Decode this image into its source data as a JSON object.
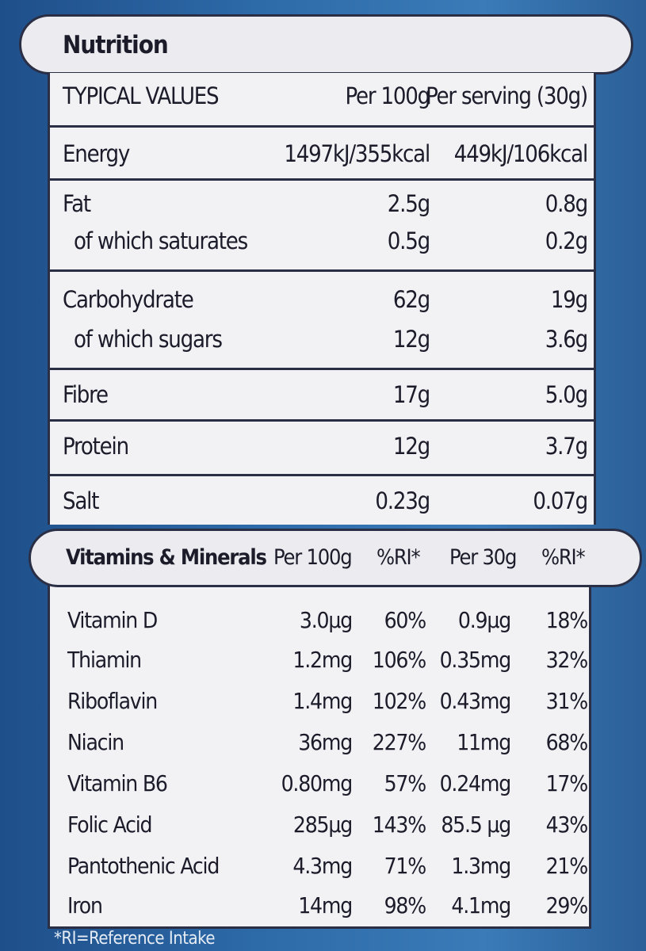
{
  "nutrition": {
    "title": "Nutrition",
    "header": {
      "label": "TYPICAL VALUES",
      "per100": "Per 100g",
      "perServing": "Per serving (30g)"
    },
    "energy": {
      "label": "Energy",
      "per100": "1497kJ/355kcal",
      "perServing": "449kJ/106kcal"
    },
    "fat": {
      "label": "Fat",
      "per100": "2.5g",
      "perServing": "0.8g"
    },
    "saturates": {
      "label": "of which saturates",
      "per100": "0.5g",
      "perServing": "0.2g"
    },
    "carbohydrate": {
      "label": "Carbohydrate",
      "per100": "62g",
      "perServing": "19g"
    },
    "sugars": {
      "label": "of which sugars",
      "per100": "12g",
      "perServing": "3.6g"
    },
    "fibre": {
      "label": "Fibre",
      "per100": "17g",
      "perServing": "5.0g"
    },
    "protein": {
      "label": "Protein",
      "per100": "12g",
      "perServing": "3.7g"
    },
    "salt": {
      "label": "Salt",
      "per100": "0.23g",
      "perServing": "0.07g"
    }
  },
  "vitamins": {
    "header": {
      "title": "Vitamins & Minerals",
      "per100": "Per 100g",
      "ri1": "%RI*",
      "per30": "Per 30g",
      "ri2": "%RI*"
    },
    "rows": [
      {
        "name": "Vitamin D",
        "per100": "3.0µg",
        "ri1": "60%",
        "per30": "0.9µg",
        "ri2": "18%"
      },
      {
        "name": "Thiamin",
        "per100": "1.2mg",
        "ri1": "106%",
        "per30": "0.35mg",
        "ri2": "32%"
      },
      {
        "name": "Riboflavin",
        "per100": "1.4mg",
        "ri1": "102%",
        "per30": "0.43mg",
        "ri2": "31%"
      },
      {
        "name": "Niacin",
        "per100": "36mg",
        "ri1": "227%",
        "per30": "11mg",
        "ri2": "68%"
      },
      {
        "name": "Vitamin B6",
        "per100": "0.80mg",
        "ri1": "57%",
        "per30": "0.24mg",
        "ri2": "17%"
      },
      {
        "name": "Folic Acid",
        "per100": "285µg",
        "ri1": "143%",
        "per30": "85.5 µg",
        "ri2": "43%"
      },
      {
        "name": "Pantothenic Acid",
        "per100": "4.3mg",
        "ri1": "71%",
        "per30": "1.3mg",
        "ri2": "21%"
      },
      {
        "name": "Iron",
        "per100": "14mg",
        "ri1": "98%",
        "per30": "4.1mg",
        "ri2": "29%"
      }
    ]
  },
  "footnote": "*RI=Reference Intake"
}
